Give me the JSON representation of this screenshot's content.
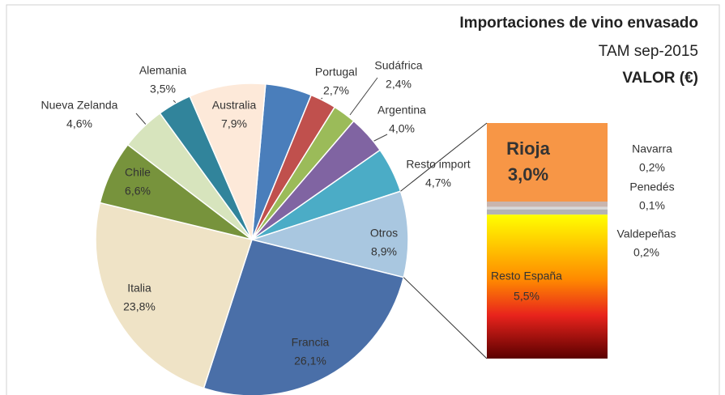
{
  "chart_data": {
    "type": "pie",
    "title": "Importaciones de vino envasado",
    "subtitle": "TAM sep-2015",
    "measure": "VALOR (€)",
    "categories": [
      null,
      "Portugal",
      "Sudáfrica",
      "Argentina",
      "Resto import",
      "Otros",
      "Francia",
      "Italia",
      "Chile",
      "Nueva Zelanda",
      "Alemania",
      "Australia"
    ],
    "values": [
      4.8,
      2.7,
      2.4,
      4.0,
      4.7,
      8.9,
      26.1,
      23.8,
      6.6,
      4.6,
      3.5,
      7.9
    ],
    "value_labels": [
      null,
      "2,7%",
      "2,4%",
      "4,0%",
      "4,7%",
      "8,9%",
      "26,1%",
      "23,8%",
      "6,6%",
      "4,6%",
      "3,5%",
      "7,9%"
    ],
    "colors": [
      "#4a7ebb",
      "#c0504d",
      "#9bbb59",
      "#8064a2",
      "#4bacc6",
      "#a9c7e0",
      "#4a6fa8",
      "#efe3c6",
      "#77933c",
      "#d7e4bd",
      "#31849b",
      "#fde9d9"
    ],
    "breakdown": {
      "categories": [
        "Rioja",
        "Navarra",
        "Penedés",
        "Valdepeñas",
        "Resto España"
      ],
      "values": [
        3.0,
        0.2,
        0.1,
        0.2,
        5.5
      ],
      "value_labels": [
        "3,0%",
        "0,2%",
        "0,1%",
        "0,2%",
        "5,5%"
      ],
      "colors": [
        "#f79646",
        "#c9b5ae",
        "#d9d9d9",
        "#b3b3b3",
        "#e8231c"
      ]
    }
  }
}
